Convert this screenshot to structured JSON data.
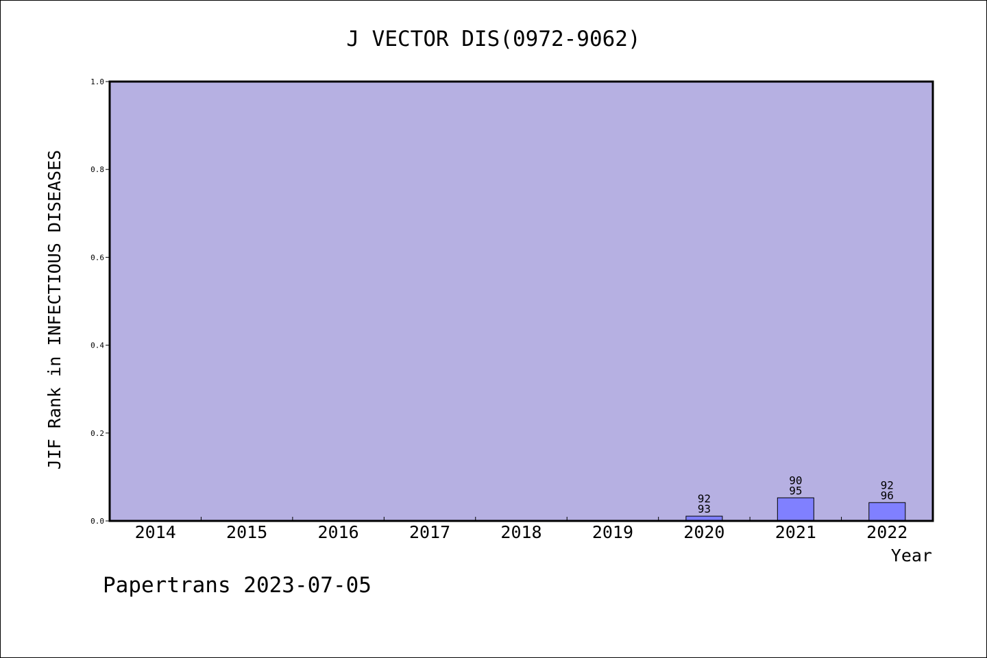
{
  "colors": {
    "plot_background": "#b6b0e2",
    "bar_fill": "#8080ff",
    "bar_stroke": "#000000",
    "axis": "#000000"
  },
  "footer": {
    "text": "Papertrans 2023-07-05"
  },
  "chart_data": {
    "type": "bar",
    "title": "J VECTOR DIS(0972-9062)",
    "xlabel": "Year",
    "ylabel": "JIF Rank in INFECTIOUS DISEASES",
    "ylim": [
      0,
      1.0
    ],
    "yticks": [
      "0.0",
      "0.2",
      "0.4",
      "0.6",
      "0.8",
      "1.0"
    ],
    "categories": [
      "2014",
      "2015",
      "2016",
      "2017",
      "2018",
      "2019",
      "2020",
      "2021",
      "2022"
    ],
    "values": [
      null,
      null,
      null,
      null,
      null,
      null,
      0.0108,
      0.0526,
      0.0417
    ],
    "rank_labels": [
      null,
      null,
      null,
      null,
      null,
      null,
      [
        "92",
        "93"
      ],
      [
        "90",
        "95"
      ],
      [
        "92",
        "96"
      ]
    ],
    "grid": false,
    "legend": "none"
  }
}
